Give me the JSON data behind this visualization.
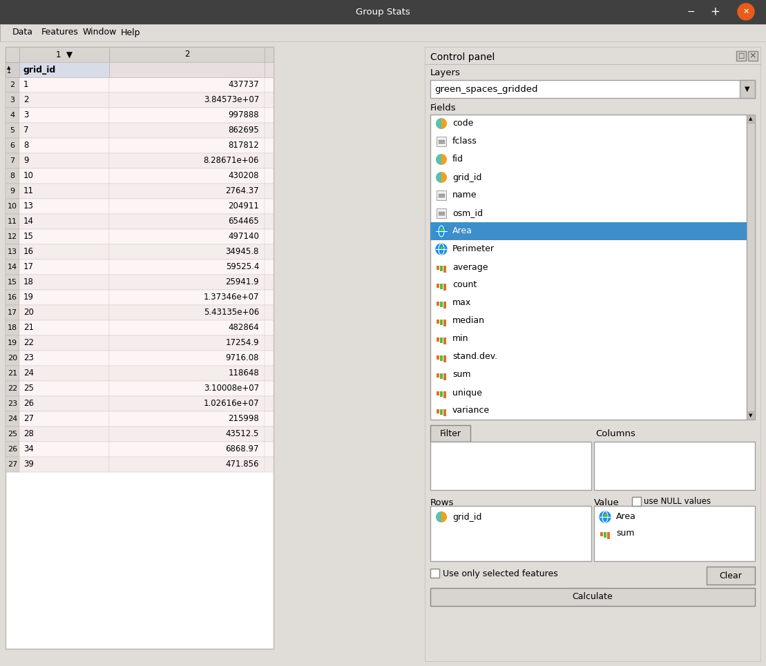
{
  "title": "Group Stats",
  "menu_items": [
    "Data",
    "Features",
    "Window",
    "Help"
  ],
  "window_bg": "#3c3c3c",
  "titlebar_text": "Group Stats",
  "body_bg": "#e8e4e0",
  "table_row_odd_bg": "#fdf5f5",
  "table_row_even_bg": "#f5eded",
  "row_header_col": "grid_id",
  "table_rows": [
    [
      2,
      "1",
      "437737"
    ],
    [
      3,
      "2",
      "3.84573e+07"
    ],
    [
      4,
      "3",
      "997888"
    ],
    [
      5,
      "7",
      "862695"
    ],
    [
      6,
      "8",
      "817812"
    ],
    [
      7,
      "9",
      "8.28671e+06"
    ],
    [
      8,
      "10",
      "430208"
    ],
    [
      9,
      "11",
      "2764.37"
    ],
    [
      10,
      "13",
      "204911"
    ],
    [
      11,
      "14",
      "654465"
    ],
    [
      12,
      "15",
      "497140"
    ],
    [
      13,
      "16",
      "34945.8"
    ],
    [
      14,
      "17",
      "59525.4"
    ],
    [
      15,
      "18",
      "25941.9"
    ],
    [
      16,
      "19",
      "1.37346e+07"
    ],
    [
      17,
      "20",
      "5.43135e+06"
    ],
    [
      18,
      "21",
      "482864"
    ],
    [
      19,
      "22",
      "17254.9"
    ],
    [
      20,
      "23",
      "9716.08"
    ],
    [
      21,
      "24",
      "118648"
    ],
    [
      22,
      "25",
      "3.10008e+07"
    ],
    [
      23,
      "26",
      "1.02616e+07"
    ],
    [
      24,
      "27",
      "215998"
    ],
    [
      25,
      "28",
      "43512.5"
    ],
    [
      26,
      "34",
      "6868.97"
    ],
    [
      27,
      "39",
      "471.856"
    ]
  ],
  "control_panel_label": "Control panel",
  "layers_label": "Layers",
  "layer_name": "green_spaces_gridded",
  "fields_label": "Fields",
  "fields_list": [
    {
      "type": "pie",
      "name": "code"
    },
    {
      "type": "text",
      "name": "fclass"
    },
    {
      "type": "pie",
      "name": "fid"
    },
    {
      "type": "pie",
      "name": "grid_id"
    },
    {
      "type": "text",
      "name": "name"
    },
    {
      "type": "text",
      "name": "osm_id"
    },
    {
      "type": "globe",
      "name": "Area",
      "selected": true
    },
    {
      "type": "globe2",
      "name": "Perimeter"
    },
    {
      "type": "bar",
      "name": "average"
    },
    {
      "type": "bar",
      "name": "count"
    },
    {
      "type": "bar",
      "name": "max"
    },
    {
      "type": "bar",
      "name": "median"
    },
    {
      "type": "bar",
      "name": "min"
    },
    {
      "type": "bar",
      "name": "stand.dev."
    },
    {
      "type": "bar",
      "name": "sum"
    },
    {
      "type": "bar",
      "name": "unique"
    },
    {
      "type": "bar",
      "name": "variance"
    }
  ],
  "filter_label": "Filter",
  "columns_label": "Columns",
  "rows_label": "Rows",
  "value_label": "Value",
  "use_null_label": "use NULL values",
  "rows_items": [
    {
      "type": "pie",
      "name": "grid_id"
    }
  ],
  "value_items": [
    {
      "type": "globe2",
      "name": "Area"
    },
    {
      "type": "bar",
      "name": "sum"
    }
  ],
  "use_only_selected": "Use only selected features",
  "clear_btn": "Clear",
  "calculate_btn": "Calculate",
  "selected_field_bg": "#3d8ec9",
  "selected_field_text": "#ffffff"
}
